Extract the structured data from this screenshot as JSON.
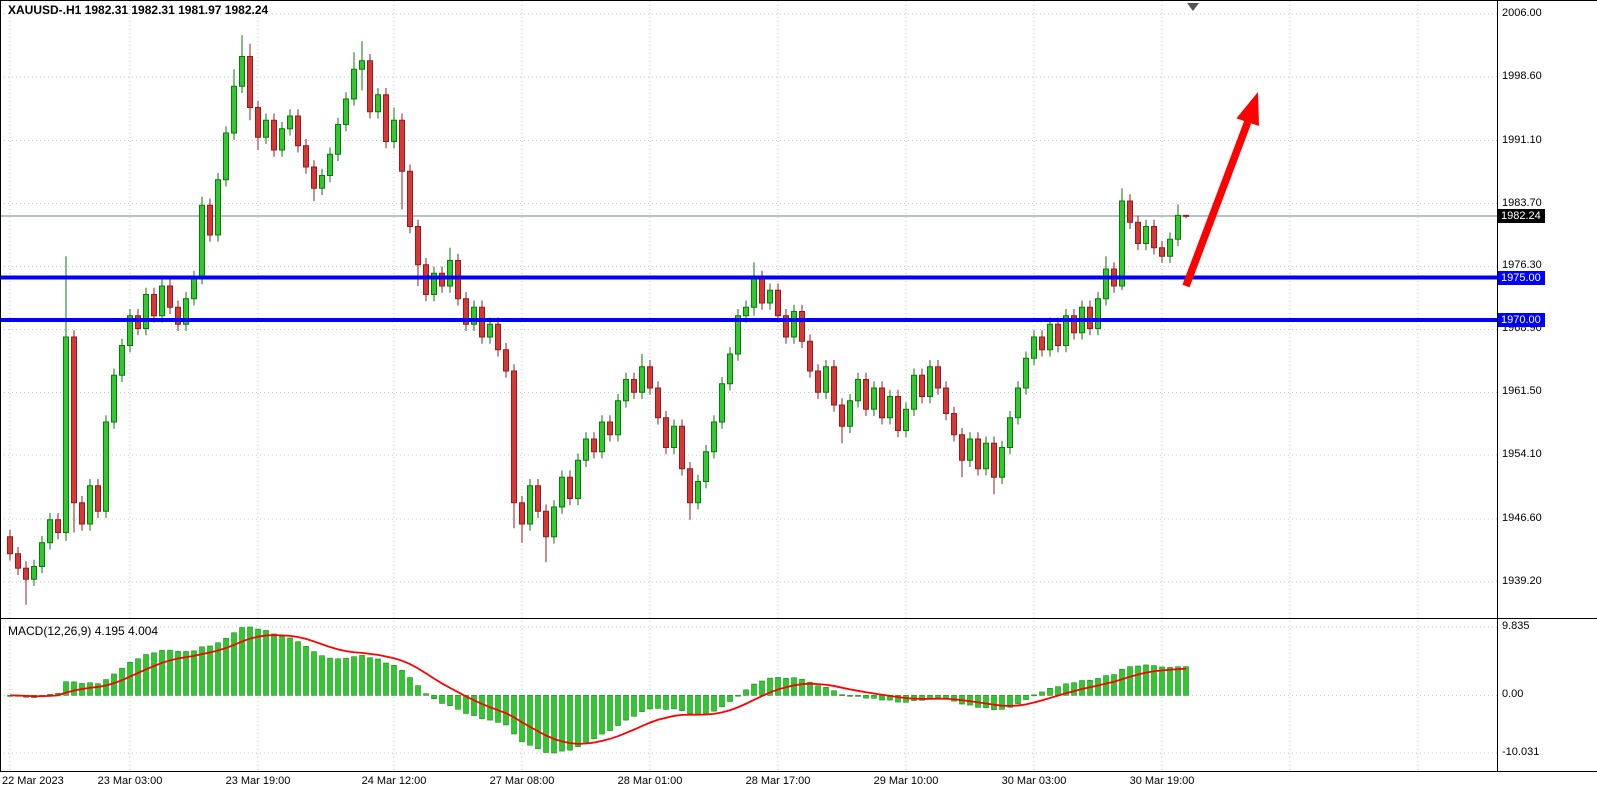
{
  "header": {
    "line": "XAUUSD-.H1 1982.31 1982.31 1981.97 1982.24"
  },
  "macd_panel": {
    "label": "MACD(12,26,9) 4.195 4.004"
  },
  "price_scale": {
    "current_price_tag": "1982.24"
  },
  "colors": {
    "bull": "#2FC82F",
    "bull_dark": "#0B7A0B",
    "bear": "#D93636",
    "bear_dark": "#8F1F1F",
    "grid": "#C6C6C6",
    "hline": "#0000FF",
    "signal": "#FF0000",
    "last_price_line": "#708090",
    "histogram": "#2FC82F",
    "frame": "#000000",
    "tag_current_bg": "#000000",
    "arrow": "#FF0000"
  },
  "chart_data": {
    "type": "candlestick",
    "symbol": "XAUUSD-",
    "period": "H1",
    "last_price": 1982.24,
    "y_ticks": [
      "2006.00",
      "1998.60",
      "1991.10",
      "1983.70",
      "1976.30",
      "1968.90",
      "1961.50",
      "1954.10",
      "1946.60",
      "1939.20"
    ],
    "x_ticks": [
      {
        "bar": 0,
        "label": "22 Mar 2023"
      },
      {
        "bar": 15,
        "label": "23 Mar 03:00"
      },
      {
        "bar": 31,
        "label": "23 Mar 19:00"
      },
      {
        "bar": 48,
        "label": "24 Mar 12:00"
      },
      {
        "bar": 64,
        "label": "27 Mar 08:00"
      },
      {
        "bar": 80,
        "label": "28 Mar 01:00"
      },
      {
        "bar": 96,
        "label": "28 Mar 17:00"
      },
      {
        "bar": 112,
        "label": "29 Mar 10:00"
      },
      {
        "bar": 128,
        "label": "30 Mar 03:00"
      },
      {
        "bar": 144,
        "label": "30 Mar 19:00"
      }
    ],
    "future_gridline_bars": [
      160,
      176
    ],
    "horizontal_lines": [
      {
        "price": 1975.0,
        "label": "1975.00",
        "color": "#0000FF"
      },
      {
        "price": 1970.0,
        "label": "1970.00",
        "color": "#0000FF"
      }
    ],
    "annotation_arrow": {
      "type": "arrow-up-right",
      "color": "#FF0000"
    },
    "macd": {
      "fast": 12,
      "slow": 26,
      "signal": 9,
      "display_main": "4.195",
      "display_signal": "4.004",
      "scale_ticks": [
        "9.835",
        "0.00",
        "-10.031"
      ]
    },
    "candles": [
      [
        1944.5,
        1945.3,
        1941.7,
        1942.5
      ],
      [
        1942.5,
        1943.3,
        1940,
        1940.8
      ],
      [
        1940.8,
        1941.6,
        1936.5,
        1939.5
      ],
      [
        1939.5,
        1941.8,
        1938.7,
        1941
      ],
      [
        1941,
        1944.6,
        1940.2,
        1943.8
      ],
      [
        1943.8,
        1947.3,
        1943,
        1946.5
      ],
      [
        1946.5,
        1947.3,
        1944.2,
        1945
      ],
      [
        1945,
        1977.5,
        1944,
        1968
      ],
      [
        1968,
        1968.8,
        1945,
        1948.5
      ],
      [
        1948.5,
        1949.3,
        1945.2,
        1946
      ],
      [
        1946,
        1951.3,
        1945.2,
        1950.5
      ],
      [
        1950.5,
        1951.3,
        1946.7,
        1947.5
      ],
      [
        1947.5,
        1958.8,
        1946.7,
        1958
      ],
      [
        1958,
        1964.3,
        1957.2,
        1963.5
      ],
      [
        1963.5,
        1967.8,
        1962.7,
        1967
      ],
      [
        1967,
        1971.3,
        1966.2,
        1970.5
      ],
      [
        1970.5,
        1971.3,
        1968.2,
        1969
      ],
      [
        1969,
        1973.8,
        1968.2,
        1973
      ],
      [
        1973,
        1973.8,
        1969.7,
        1970.5
      ],
      [
        1970.5,
        1974.8,
        1969.7,
        1974
      ],
      [
        1974,
        1974.8,
        1970.7,
        1971.5
      ],
      [
        1971.5,
        1972.3,
        1968.7,
        1969.5
      ],
      [
        1969.5,
        1973.3,
        1968.7,
        1972.5
      ],
      [
        1972.5,
        1975.8,
        1971.7,
        1975
      ],
      [
        1975,
        1984.5,
        1974.2,
        1983.5
      ],
      [
        1983.5,
        1984.3,
        1979.2,
        1980
      ],
      [
        1980,
        1987.3,
        1979.2,
        1986.5
      ],
      [
        1986.5,
        1992.8,
        1985.7,
        1992
      ],
      [
        1992,
        1999.5,
        1991.2,
        1997.5
      ],
      [
        1997.5,
        2003.5,
        1996.7,
        2001
      ],
      [
        2001,
        2002.5,
        1993.5,
        1995
      ],
      [
        1995,
        1995.8,
        1990,
        1991.5
      ],
      [
        1991.5,
        1994.3,
        1990.7,
        1993.5
      ],
      [
        1993.5,
        1994.3,
        1989.2,
        1990
      ],
      [
        1990,
        1993.3,
        1989.2,
        1992.5
      ],
      [
        1992.5,
        1994.8,
        1991.7,
        1994
      ],
      [
        1994,
        1994.8,
        1989.7,
        1990.5
      ],
      [
        1990.5,
        1991.3,
        1987.2,
        1988
      ],
      [
        1988,
        1988.8,
        1984,
        1985.5
      ],
      [
        1985.5,
        1987.8,
        1984.7,
        1987
      ],
      [
        1987,
        1990.3,
        1986.2,
        1989.5
      ],
      [
        1989.5,
        1993.8,
        1988.7,
        1993
      ],
      [
        1993,
        1996.8,
        1992.2,
        1996
      ],
      [
        1996,
        2001.5,
        1995.2,
        1999.5
      ],
      [
        1999.5,
        2002.8,
        1997,
        2000.5
      ],
      [
        2000.5,
        2001.3,
        1993.7,
        1994.5
      ],
      [
        1994.5,
        1997.3,
        1993.7,
        1996.5
      ],
      [
        1996.5,
        1997.3,
        1990.2,
        1991
      ],
      [
        1991,
        1995,
        1990.2,
        1993.5
      ],
      [
        1993.5,
        1994.3,
        1983,
        1987.5
      ],
      [
        1987.5,
        1988.3,
        1980.2,
        1981
      ],
      [
        1981,
        1981.8,
        1974,
        1976.5
      ],
      [
        1976.5,
        1977.3,
        1972.2,
        1973
      ],
      [
        1973,
        1976.3,
        1972.2,
        1975.5
      ],
      [
        1975.5,
        1976.3,
        1973.2,
        1974
      ],
      [
        1974,
        1978.5,
        1973.2,
        1977
      ],
      [
        1977,
        1977.8,
        1971.7,
        1972.5
      ],
      [
        1972.5,
        1973.3,
        1968.7,
        1969.5
      ],
      [
        1969.5,
        1972.3,
        1968.7,
        1971.5
      ],
      [
        1971.5,
        1972.3,
        1967.2,
        1968
      ],
      [
        1968,
        1970.3,
        1967.2,
        1969.5
      ],
      [
        1969.5,
        1970.3,
        1965.7,
        1966.5
      ],
      [
        1966.5,
        1967.3,
        1963.2,
        1964
      ],
      [
        1964,
        1964.8,
        1945.5,
        1948.5
      ],
      [
        1948.5,
        1949.3,
        1943.8,
        1946
      ],
      [
        1946,
        1951.3,
        1945.2,
        1950.5
      ],
      [
        1950.5,
        1951.3,
        1946.7,
        1947.5
      ],
      [
        1947.5,
        1948.3,
        1941.5,
        1944.5
      ],
      [
        1944.5,
        1948.8,
        1943.7,
        1948
      ],
      [
        1948,
        1952.3,
        1947.2,
        1951.5
      ],
      [
        1951.5,
        1952.3,
        1948.2,
        1949
      ],
      [
        1949,
        1954.3,
        1948.2,
        1953.5
      ],
      [
        1953.5,
        1956.8,
        1952.7,
        1956
      ],
      [
        1956,
        1956.8,
        1953.7,
        1954.5
      ],
      [
        1954.5,
        1958.8,
        1953.7,
        1958
      ],
      [
        1958,
        1958.8,
        1955.7,
        1956.5
      ],
      [
        1956.5,
        1961.3,
        1955.7,
        1960.5
      ],
      [
        1960.5,
        1963.8,
        1959.7,
        1963
      ],
      [
        1963,
        1963.8,
        1960.7,
        1961.5
      ],
      [
        1961.5,
        1966,
        1960.7,
        1964.5
      ],
      [
        1964.5,
        1965.3,
        1961.2,
        1962
      ],
      [
        1962,
        1962.8,
        1957.7,
        1958.5
      ],
      [
        1958.5,
        1959.3,
        1954.2,
        1955
      ],
      [
        1955,
        1958.3,
        1954.2,
        1957.5
      ],
      [
        1957.5,
        1958.3,
        1951.7,
        1952.5
      ],
      [
        1952.5,
        1953.3,
        1946.5,
        1948.5
      ],
      [
        1948.5,
        1951.8,
        1947.7,
        1951
      ],
      [
        1951,
        1955.3,
        1950.2,
        1954.5
      ],
      [
        1954.5,
        1958.8,
        1953.7,
        1958
      ],
      [
        1958,
        1963.3,
        1957.2,
        1962.5
      ],
      [
        1962.5,
        1966.8,
        1961.7,
        1966
      ],
      [
        1966,
        1971.3,
        1965.2,
        1970.5
      ],
      [
        1970.5,
        1972.3,
        1969.7,
        1971.5
      ],
      [
        1971.5,
        1976.8,
        1970.5,
        1975
      ],
      [
        1975,
        1975.8,
        1971.2,
        1972
      ],
      [
        1972,
        1974.3,
        1971.2,
        1973.5
      ],
      [
        1973.5,
        1974.3,
        1969.7,
        1970.5
      ],
      [
        1970.5,
        1971.3,
        1967.2,
        1968
      ],
      [
        1968,
        1971.8,
        1967.2,
        1971
      ],
      [
        1971,
        1971.8,
        1966.7,
        1967.5
      ],
      [
        1967.5,
        1968.3,
        1963.2,
        1964
      ],
      [
        1964,
        1964.8,
        1960.7,
        1961.5
      ],
      [
        1961.5,
        1965.3,
        1960.7,
        1964.5
      ],
      [
        1964.5,
        1965.3,
        1959.2,
        1960
      ],
      [
        1960,
        1960.8,
        1955.5,
        1957.5
      ],
      [
        1957.5,
        1961.3,
        1956.7,
        1960.5
      ],
      [
        1960.5,
        1963.8,
        1959.7,
        1963
      ],
      [
        1963,
        1963.8,
        1958.7,
        1959.5
      ],
      [
        1959.5,
        1962.8,
        1958.7,
        1962
      ],
      [
        1962,
        1962.8,
        1957.7,
        1958.5
      ],
      [
        1958.5,
        1961.8,
        1957.7,
        1961
      ],
      [
        1961,
        1961.8,
        1956.2,
        1957
      ],
      [
        1957,
        1960.3,
        1956.2,
        1959.5
      ],
      [
        1959.5,
        1964.3,
        1958.7,
        1963.5
      ],
      [
        1963.5,
        1964.3,
        1960.2,
        1961
      ],
      [
        1961,
        1965.3,
        1960.2,
        1964.5
      ],
      [
        1964.5,
        1965.3,
        1961.2,
        1962
      ],
      [
        1962,
        1962.8,
        1958.2,
        1959
      ],
      [
        1959,
        1959.8,
        1955.7,
        1956.5
      ],
      [
        1956.5,
        1957.3,
        1951.5,
        1953.5
      ],
      [
        1953.5,
        1956.8,
        1952.7,
        1956
      ],
      [
        1956,
        1956.8,
        1951.7,
        1952.5
      ],
      [
        1952.5,
        1956.3,
        1951.7,
        1955.5
      ],
      [
        1955.5,
        1956.3,
        1949.5,
        1951.5
      ],
      [
        1951.5,
        1955.8,
        1950.7,
        1955
      ],
      [
        1955,
        1959.3,
        1954.2,
        1958.5
      ],
      [
        1958.5,
        1962.8,
        1957.7,
        1962
      ],
      [
        1962,
        1966.3,
        1961.2,
        1965.5
      ],
      [
        1965.5,
        1968.8,
        1964.7,
        1968
      ],
      [
        1968,
        1968.8,
        1965.7,
        1966.5
      ],
      [
        1966.5,
        1970.3,
        1965.7,
        1969.5
      ],
      [
        1969.5,
        1970.3,
        1966.2,
        1967
      ],
      [
        1967,
        1971.3,
        1966.2,
        1970.5
      ],
      [
        1970.5,
        1971.3,
        1967.7,
        1968.5
      ],
      [
        1968.5,
        1972.3,
        1967.7,
        1971.5
      ],
      [
        1971.5,
        1972.3,
        1968.2,
        1969
      ],
      [
        1969,
        1973.3,
        1968.2,
        1972.5
      ],
      [
        1972.5,
        1977.5,
        1971.7,
        1976
      ],
      [
        1976,
        1976.8,
        1973.2,
        1974
      ],
      [
        1974,
        1985.5,
        1973.5,
        1984
      ],
      [
        1984,
        1984.8,
        1980.7,
        1981.5
      ],
      [
        1981.5,
        1982.3,
        1978.2,
        1979
      ],
      [
        1979,
        1981.8,
        1978.2,
        1981
      ],
      [
        1981,
        1981.8,
        1977.7,
        1978.5
      ],
      [
        1978.5,
        1979.3,
        1976.7,
        1977.5
      ],
      [
        1977.5,
        1980.3,
        1976.7,
        1979.5
      ],
      [
        1979.5,
        1983.6,
        1978.7,
        1982.31
      ],
      [
        1982.31,
        1982.31,
        1981.97,
        1982.24
      ]
    ]
  }
}
